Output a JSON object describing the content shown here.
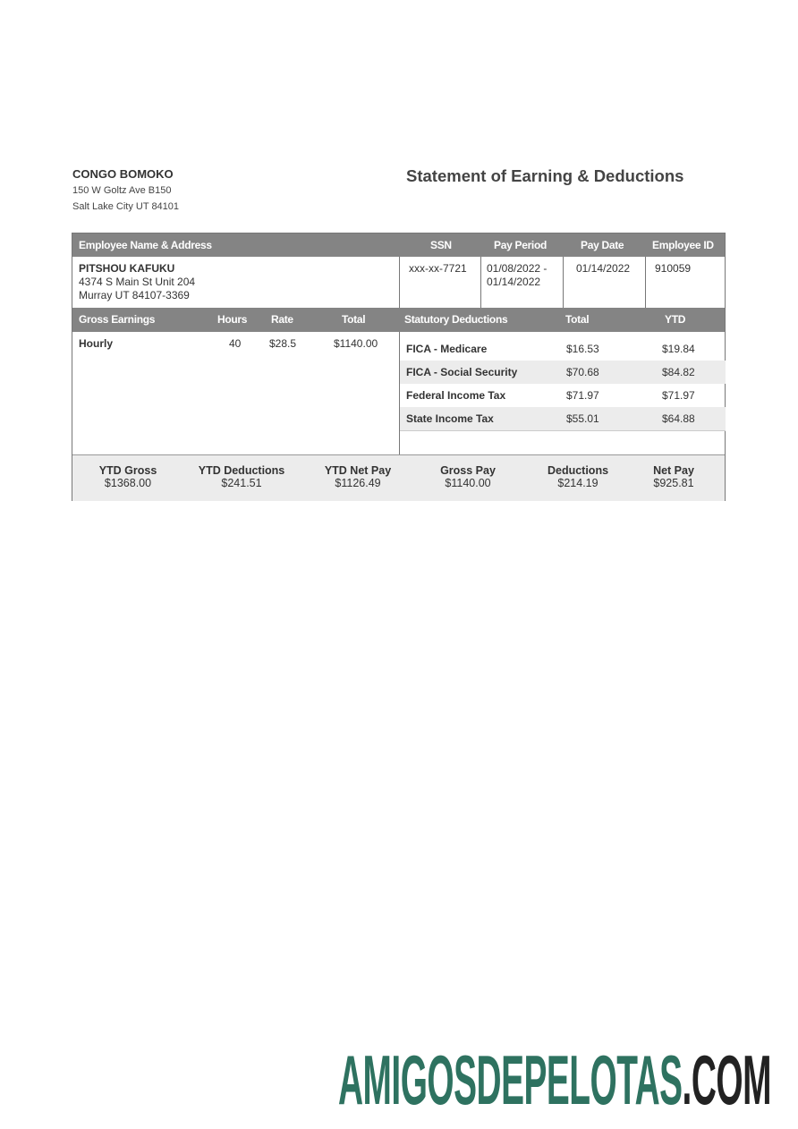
{
  "employer": {
    "name": "CONGO BOMOKO",
    "address_line1": "150 W Goltz Ave B150",
    "address_line2": "Salt Lake City UT 84101"
  },
  "title": "Statement of Earning & Deductions",
  "header": {
    "employee": "Employee Name & Address",
    "ssn": "SSN",
    "pay_period": "Pay Period",
    "pay_date": "Pay Date",
    "employee_id": "Employee ID"
  },
  "employee": {
    "name": "PITSHOU KAFUKU",
    "address_line1": "4374 S Main St Unit 204",
    "address_line2": "Murray UT 84107-3369",
    "ssn": "xxx-xx-7721",
    "pay_period_start": "01/08/2022 -",
    "pay_period_end": "01/14/2022",
    "pay_date": "01/14/2022",
    "employee_id": "910059"
  },
  "earnings_header": {
    "label": "Gross Earnings",
    "hours": "Hours",
    "rate": "Rate",
    "total": "Total"
  },
  "earnings": [
    {
      "label": "Hourly",
      "hours": "40",
      "rate": "$28.5",
      "total": "$1140.00"
    }
  ],
  "deductions_header": {
    "label": "Statutory Deductions",
    "total": "Total",
    "ytd": "YTD"
  },
  "deductions": [
    {
      "label": "FICA - Medicare",
      "total": "$16.53",
      "ytd": "$19.84"
    },
    {
      "label": "FICA - Social Security",
      "total": "$70.68",
      "ytd": "$84.82"
    },
    {
      "label": "Federal Income Tax",
      "total": "$71.97",
      "ytd": "$71.97"
    },
    {
      "label": "State Income Tax",
      "total": "$55.01",
      "ytd": "$64.88"
    }
  ],
  "summary": [
    {
      "label": "YTD Gross",
      "value": "$1368.00"
    },
    {
      "label": "YTD Deductions",
      "value": "$241.51"
    },
    {
      "label": "YTD Net Pay",
      "value": "$1126.49"
    },
    {
      "label": "Gross Pay",
      "value": "$1140.00"
    },
    {
      "label": "Deductions",
      "value": "$214.19"
    },
    {
      "label": "Net Pay",
      "value": "$925.81"
    }
  ],
  "watermark": {
    "main": "AMIGOSDEPELOTAS",
    "suffix": ".COM",
    "main_color": "#2e7260",
    "suffix_color": "#222222"
  },
  "colors": {
    "header_bg": "#848484",
    "shade": "#ececec"
  }
}
